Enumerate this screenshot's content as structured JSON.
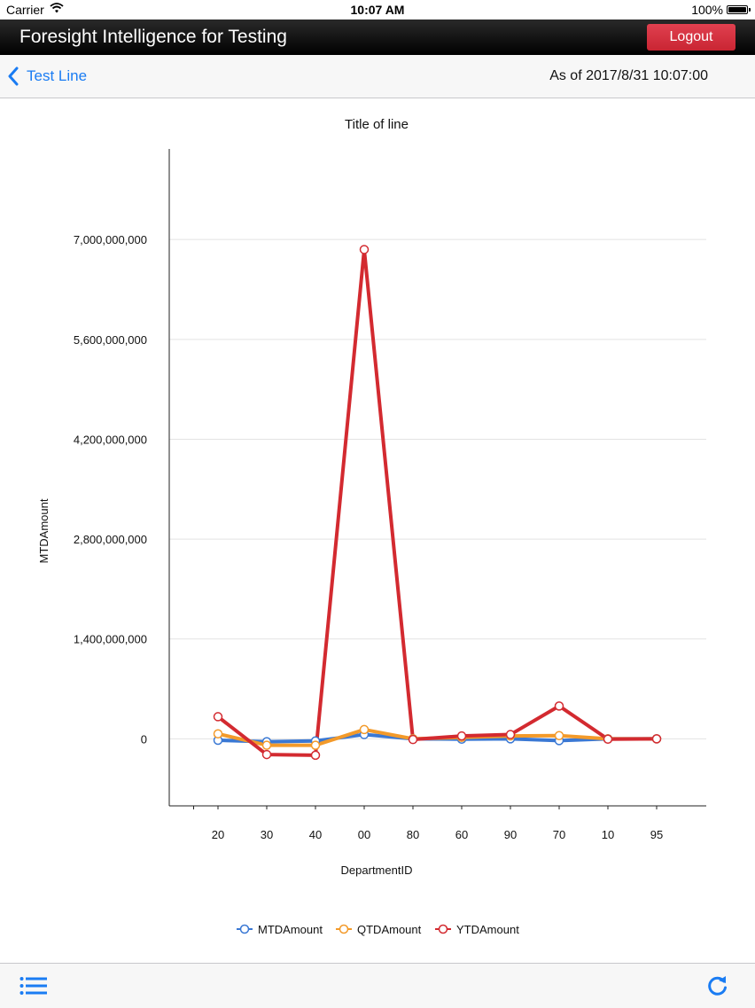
{
  "status_bar": {
    "carrier": "Carrier",
    "time": "10:07 AM",
    "battery": "100%"
  },
  "app_bar": {
    "title": "Foresight Intelligence for Testing",
    "logout_label": "Logout"
  },
  "nav_bar": {
    "back_label": "Test Line",
    "as_of": "As of 2017/8/31 10:07:00"
  },
  "colors": {
    "accent": "#1a7cf3",
    "logout": "#d8323f",
    "mtd": "#3a78d4",
    "qtd": "#f39a2a",
    "ytd": "#d32a30"
  },
  "chart_data": {
    "type": "line",
    "title": "Title of line",
    "xlabel": "DepartmentID",
    "ylabel": "MTDAmount",
    "categories": [
      "20",
      "30",
      "40",
      "00",
      "80",
      "60",
      "90",
      "70",
      "10",
      "95"
    ],
    "yticks": [
      "0",
      "1,400,000,000",
      "2,800,000,000",
      "4,200,000,000",
      "5,600,000,000",
      "7,000,000,000"
    ],
    "ylim": [
      -940000000,
      8270000000
    ],
    "grid": true,
    "legend_position": "bottom",
    "series": [
      {
        "name": "MTDAmount",
        "color": "#3a78d4",
        "values": [
          -20000000,
          -40000000,
          -30000000,
          60000000,
          0,
          -5000000,
          0,
          -25000000,
          0,
          0
        ]
      },
      {
        "name": "QTDAmount",
        "color": "#f39a2a",
        "values": [
          70000000,
          -90000000,
          -90000000,
          130000000,
          0,
          20000000,
          40000000,
          45000000,
          0,
          0
        ]
      },
      {
        "name": "YTDAmount",
        "color": "#d32a30",
        "values": [
          310000000,
          -220000000,
          -230000000,
          6860000000,
          -10000000,
          40000000,
          60000000,
          460000000,
          -5000000,
          0
        ]
      }
    ]
  }
}
